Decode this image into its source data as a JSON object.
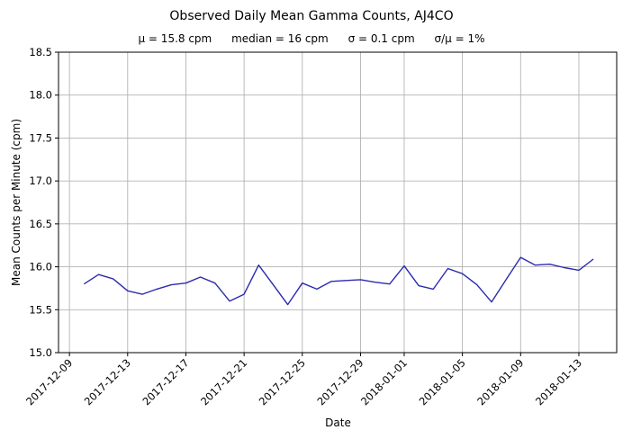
{
  "chart_data": {
    "type": "line",
    "title": "Observed Daily Mean Gamma Counts, AJ4CO",
    "stats": [
      "μ = 15.8 cpm",
      "median = 16 cpm",
      "σ = 0.1 cpm",
      "σ/μ = 1%"
    ],
    "xlabel": "Date",
    "ylabel": "Mean Counts per Minute (cpm)",
    "ylim": [
      15.0,
      18.5
    ],
    "yticks": [
      15.0,
      15.5,
      16.0,
      16.5,
      17.0,
      17.5,
      18.0,
      18.5
    ],
    "xticks": [
      {
        "label": "2017-12-09",
        "day": -1
      },
      {
        "label": "2017-12-13",
        "day": 3
      },
      {
        "label": "2017-12-17",
        "day": 7
      },
      {
        "label": "2017-12-21",
        "day": 11
      },
      {
        "label": "2017-12-25",
        "day": 15
      },
      {
        "label": "2017-12-29",
        "day": 19
      },
      {
        "label": "2018-01-01",
        "day": 22
      },
      {
        "label": "2018-01-05",
        "day": 26
      },
      {
        "label": "2018-01-09",
        "day": 30
      },
      {
        "label": "2018-01-13",
        "day": 34
      }
    ],
    "x_domain_days": [
      -1.75,
      36.6
    ],
    "grid": true,
    "legend": null,
    "colors": {
      "line": "#2b2baf",
      "grid": "#b3b3b3",
      "axis": "#000000"
    },
    "series": [
      {
        "name": "daily mean gamma counts",
        "dates": [
          "2017-12-10",
          "2017-12-11",
          "2017-12-12",
          "2017-12-13",
          "2017-12-14",
          "2017-12-15",
          "2017-12-16",
          "2017-12-17",
          "2017-12-18",
          "2017-12-19",
          "2017-12-20",
          "2017-12-21",
          "2017-12-22",
          "2017-12-23",
          "2017-12-24",
          "2017-12-25",
          "2017-12-26",
          "2017-12-27",
          "2017-12-28",
          "2017-12-29",
          "2017-12-30",
          "2017-12-31",
          "2018-01-01",
          "2018-01-02",
          "2018-01-03",
          "2018-01-04",
          "2018-01-05",
          "2018-01-06",
          "2018-01-07",
          "2018-01-08",
          "2018-01-09",
          "2018-01-10",
          "2018-01-11",
          "2018-01-12",
          "2018-01-13",
          "2018-01-14"
        ],
        "values": [
          15.8,
          15.91,
          15.86,
          15.72,
          15.68,
          15.74,
          15.79,
          15.81,
          15.88,
          15.81,
          15.6,
          15.68,
          16.02,
          15.79,
          15.56,
          15.81,
          15.74,
          15.83,
          15.84,
          15.85,
          15.82,
          15.8,
          16.01,
          15.78,
          15.74,
          15.98,
          15.92,
          15.79,
          15.59,
          15.85,
          16.11,
          16.02,
          16.03,
          15.99,
          15.96,
          16.09
        ]
      }
    ]
  }
}
